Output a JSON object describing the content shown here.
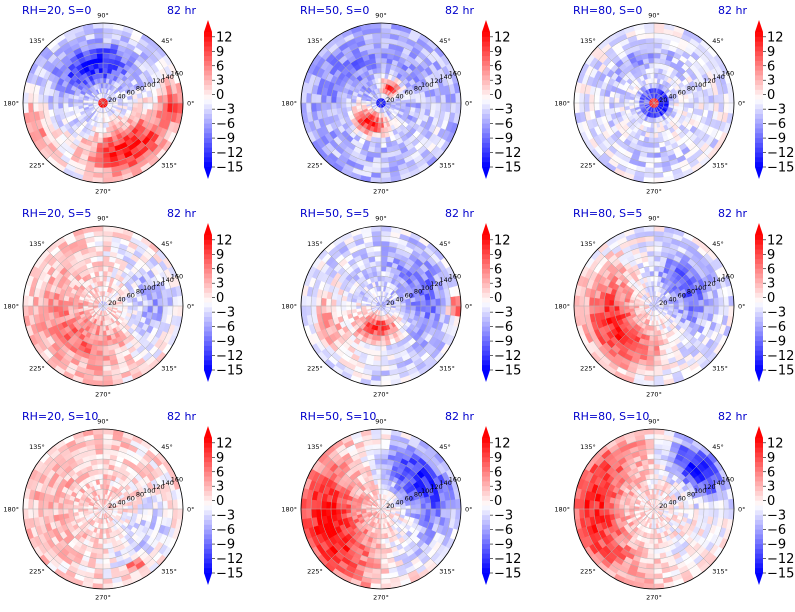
{
  "chart_data": {
    "type": "heatmap",
    "projection": "polar",
    "layout": {
      "rows": 3,
      "cols": 3
    },
    "colormap": "bwr",
    "colorbar": {
      "ticks": [
        12,
        9,
        6,
        3,
        0,
        -3,
        -6,
        -9,
        -12,
        -15
      ],
      "tick_labels": [
        "12",
        "9",
        "6",
        "3",
        "0",
        "−3",
        "−6",
        "−9",
        "−12",
        "−15"
      ],
      "range": [
        -15,
        13
      ],
      "extend": "both"
    },
    "angle_labels": [
      "90°",
      "45°",
      "0°",
      "315°",
      "270°",
      "225°",
      "180°",
      "135°"
    ],
    "radial_ticks": [
      "20",
      "40",
      "60",
      "80",
      "100",
      "120",
      "140",
      "160"
    ],
    "radial_max": 160,
    "grid": true,
    "panels": [
      {
        "title": "RH=20, S=0",
        "time": "82 hr",
        "rh": 20,
        "s": 0,
        "pattern": {
          "background": -3,
          "eye": 12,
          "blobs": [
            {
              "angle": 300,
              "radius": 105,
              "span_deg": 75,
              "width": 70,
              "value": 12
            },
            {
              "angle": 105,
              "radius": 80,
              "span_deg": 80,
              "width": 55,
              "value": -14
            },
            {
              "angle": 200,
              "radius": 140,
              "span_deg": 35,
              "width": 35,
              "value": 5
            },
            {
              "angle": 0,
              "radius": 140,
              "span_deg": 25,
              "width": 30,
              "value": 8
            }
          ]
        }
      },
      {
        "title": "RH=50, S=0",
        "time": "82 hr",
        "rh": 50,
        "s": 0,
        "pattern": {
          "background": -5,
          "eye": -14,
          "blobs": [
            {
              "angle": 240,
              "radius": 45,
              "span_deg": 70,
              "width": 35,
              "value": 12
            },
            {
              "angle": 60,
              "radius": 35,
              "span_deg": 50,
              "width": 25,
              "value": 10
            },
            {
              "angle": 120,
              "radius": 90,
              "span_deg": 90,
              "width": 55,
              "value": -8
            },
            {
              "angle": 320,
              "radius": 120,
              "span_deg": 60,
              "width": 50,
              "value": -3
            }
          ]
        }
      },
      {
        "title": "RH=80, S=0",
        "time": "82 hr",
        "rh": 80,
        "s": 0,
        "pattern": {
          "background": -2,
          "eye": 12,
          "blobs": [
            {
              "angle": 0,
              "radius": 20,
              "span_deg": 360,
              "width": 18,
              "value": -14
            },
            {
              "angle": 110,
              "radius": 90,
              "span_deg": 80,
              "width": 40,
              "value": -6
            },
            {
              "angle": 270,
              "radius": 110,
              "span_deg": 80,
              "width": 40,
              "value": -4
            }
          ]
        }
      },
      {
        "title": "RH=20, S=5",
        "time": "82 hr",
        "rh": 20,
        "s": 5,
        "pattern": {
          "background": 1,
          "eye": -3,
          "blobs": [
            {
              "angle": 240,
              "radius": 80,
              "span_deg": 110,
              "width": 70,
              "value": 7
            },
            {
              "angle": 0,
              "radius": 100,
              "span_deg": 90,
              "width": 70,
              "value": -6
            },
            {
              "angle": 150,
              "radius": 120,
              "span_deg": 60,
              "width": 60,
              "value": 2
            }
          ]
        }
      },
      {
        "title": "RH=50, S=5",
        "time": "82 hr",
        "rh": 50,
        "s": 5,
        "pattern": {
          "background": -3,
          "eye": -5,
          "blobs": [
            {
              "angle": 260,
              "radius": 45,
              "span_deg": 80,
              "width": 40,
              "value": 10
            },
            {
              "angle": 20,
              "radius": 90,
              "span_deg": 80,
              "width": 60,
              "value": -9
            },
            {
              "angle": 200,
              "radius": 110,
              "span_deg": 60,
              "width": 45,
              "value": 4
            },
            {
              "angle": 0,
              "radius": 150,
              "span_deg": 15,
              "width": 20,
              "value": 10
            }
          ]
        }
      },
      {
        "title": "RH=80, S=5",
        "time": "82 hr",
        "rh": 80,
        "s": 5,
        "pattern": {
          "background": -2,
          "eye": -4,
          "blobs": [
            {
              "angle": 210,
              "radius": 90,
              "span_deg": 110,
              "width": 80,
              "value": 11
            },
            {
              "angle": 30,
              "radius": 80,
              "span_deg": 90,
              "width": 60,
              "value": -10
            },
            {
              "angle": 300,
              "radius": 120,
              "span_deg": 50,
              "width": 50,
              "value": -4
            }
          ]
        }
      },
      {
        "title": "RH=20, S=10",
        "time": "82 hr",
        "rh": 20,
        "s": 10,
        "pattern": {
          "background": 1,
          "eye": 0,
          "blobs": [
            {
              "angle": 160,
              "radius": 100,
              "span_deg": 100,
              "width": 90,
              "value": 3
            },
            {
              "angle": 330,
              "radius": 100,
              "span_deg": 70,
              "width": 70,
              "value": -4
            },
            {
              "angle": 300,
              "radius": 130,
              "span_deg": 12,
              "width": 15,
              "value": 11
            }
          ]
        }
      },
      {
        "title": "RH=50, S=10",
        "time": "82 hr",
        "rh": 50,
        "s": 10,
        "pattern": {
          "background": 1,
          "eye": 0,
          "blobs": [
            {
              "angle": 200,
              "radius": 110,
              "span_deg": 90,
              "width": 90,
              "value": 13
            },
            {
              "angle": 35,
              "radius": 100,
              "span_deg": 80,
              "width": 80,
              "value": -13
            },
            {
              "angle": 300,
              "radius": 110,
              "span_deg": 60,
              "width": 70,
              "value": -3
            }
          ]
        }
      },
      {
        "title": "RH=80, S=10",
        "time": "82 hr",
        "rh": 80,
        "s": 10,
        "pattern": {
          "background": 0,
          "eye": 0,
          "blobs": [
            {
              "angle": 180,
              "radius": 120,
              "span_deg": 110,
              "width": 80,
              "value": 11
            },
            {
              "angle": 45,
              "radius": 120,
              "span_deg": 50,
              "width": 60,
              "value": -14
            },
            {
              "angle": 300,
              "radius": 110,
              "span_deg": 70,
              "width": 60,
              "value": -2
            }
          ]
        }
      }
    ]
  }
}
